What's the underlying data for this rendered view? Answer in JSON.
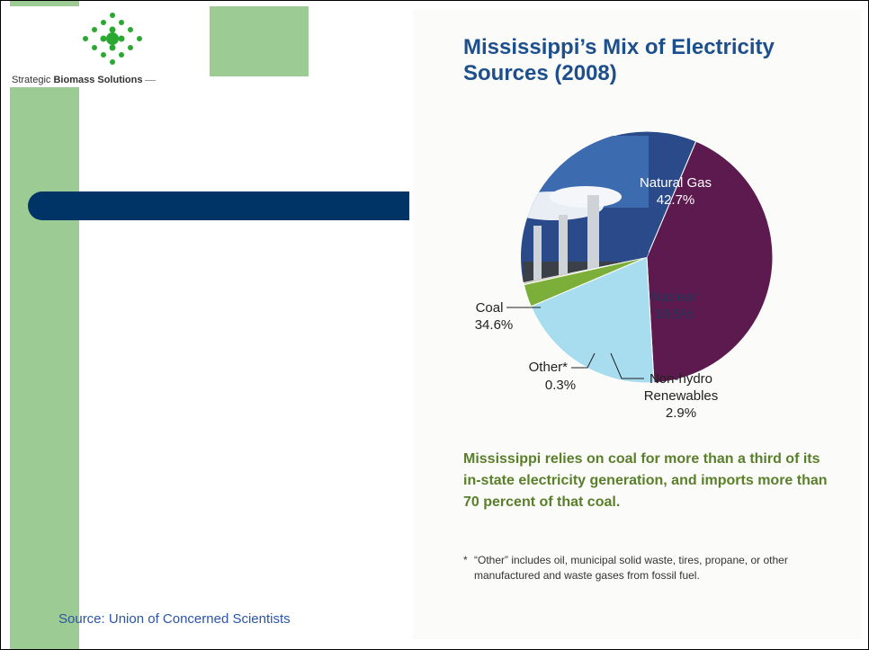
{
  "logo": {
    "text_normal": "Strategic ",
    "text_bold": "Biomass Solutions",
    "icon": "diamond-dot-cluster-icon",
    "dot_color": "#2aa832"
  },
  "colors": {
    "green_strip": "#9ccc93",
    "blue_bar": "#003366",
    "title": "#1c4f8c",
    "caption": "#5a7f2a",
    "source": "#2b55a7"
  },
  "chart_data": {
    "type": "pie",
    "title_lines": [
      "Mississippi’s Mix of Electricity",
      "Sources (2008)"
    ],
    "slices": [
      {
        "name": "Natural Gas",
        "value": 42.7,
        "label": "42.7%",
        "color": "#5c1a4f"
      },
      {
        "name": "Nuclear",
        "value": 19.5,
        "label": "19.5%",
        "color": "#a8dcef"
      },
      {
        "name_lines": [
          "Non-hydro",
          "Renewables"
        ],
        "value": 2.9,
        "label": "2.9%",
        "color": "#7cae3a"
      },
      {
        "name": "Other*",
        "value": 0.3,
        "label": "0.3%",
        "color": "#c9c9b0"
      },
      {
        "name": "Coal",
        "value": 34.6,
        "label": "34.6%",
        "color": "#2b4a8a"
      }
    ],
    "caption": "Mississippi relies on coal for more than a third of its in-state electricity generation, and imports more than 70 percent of that coal.",
    "footnote_marker": "*",
    "footnote": "“Other” includes oil, municipal solid waste, tires, propane, or other manufactured and waste gases from fossil fuel."
  },
  "source": "Source: Union of Concerned Scientists"
}
